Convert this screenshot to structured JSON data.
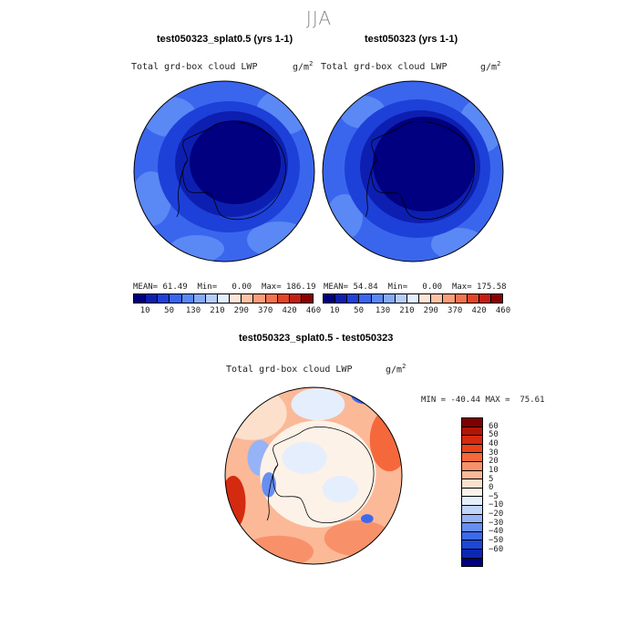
{
  "season": "JJA",
  "panels": [
    {
      "title": "test050323_splat0.5 (yrs 1-1)",
      "variable": "Total grd-box cloud LWP",
      "units_base": "g/m",
      "units_exp": "2",
      "mean_label": "MEAN=",
      "mean": "61.49",
      "min_label": "Min=",
      "min": "0.00",
      "max_label": "Max=",
      "max": "186.19"
    },
    {
      "title": "test050323 (yrs 1-1)",
      "variable": "Total grd-box cloud LWP",
      "units_base": "g/m",
      "units_exp": "2",
      "mean_label": "MEAN=",
      "mean": "54.84",
      "min_label": "Min=",
      "min": "0.00",
      "max_label": "Max=",
      "max": "175.58"
    },
    {
      "title": "test050323_splat0.5 - test050323",
      "variable": "Total grd-box cloud LWP",
      "units_base": "g/m",
      "units_exp": "2",
      "min_label": "MIN =",
      "min": "-40.44",
      "max_label": "MAX =",
      "max": "75.61"
    }
  ],
  "field_colorbar": {
    "labels": [
      "10",
      "50",
      "130",
      "210",
      "290",
      "370",
      "420",
      "460"
    ],
    "colors": [
      "#000080",
      "#0d1fb0",
      "#1d40d8",
      "#3a66ee",
      "#5a88f5",
      "#86aaf7",
      "#b6cdf8",
      "#e4eefc",
      "#fde4d6",
      "#fcc3a6",
      "#f99e79",
      "#f27350",
      "#e24428",
      "#c41d12",
      "#8b0000"
    ]
  },
  "diff_colorbar": {
    "labels": [
      "60",
      "50",
      "40",
      "30",
      "20",
      "10",
      "5",
      "0",
      "−5",
      "−10",
      "−20",
      "−30",
      "−40",
      "−50",
      "−60"
    ],
    "colors": [
      "#800000",
      "#b01608",
      "#d42a10",
      "#ee4218",
      "#f5683c",
      "#f8916a",
      "#fbb998",
      "#fde0cc",
      "#fdf2e8",
      "#e5eefc",
      "#c1d5fa",
      "#95b3f6",
      "#678ef1",
      "#3d69eb",
      "#1d47d8",
      "#0d28b0",
      "#000080"
    ]
  }
}
